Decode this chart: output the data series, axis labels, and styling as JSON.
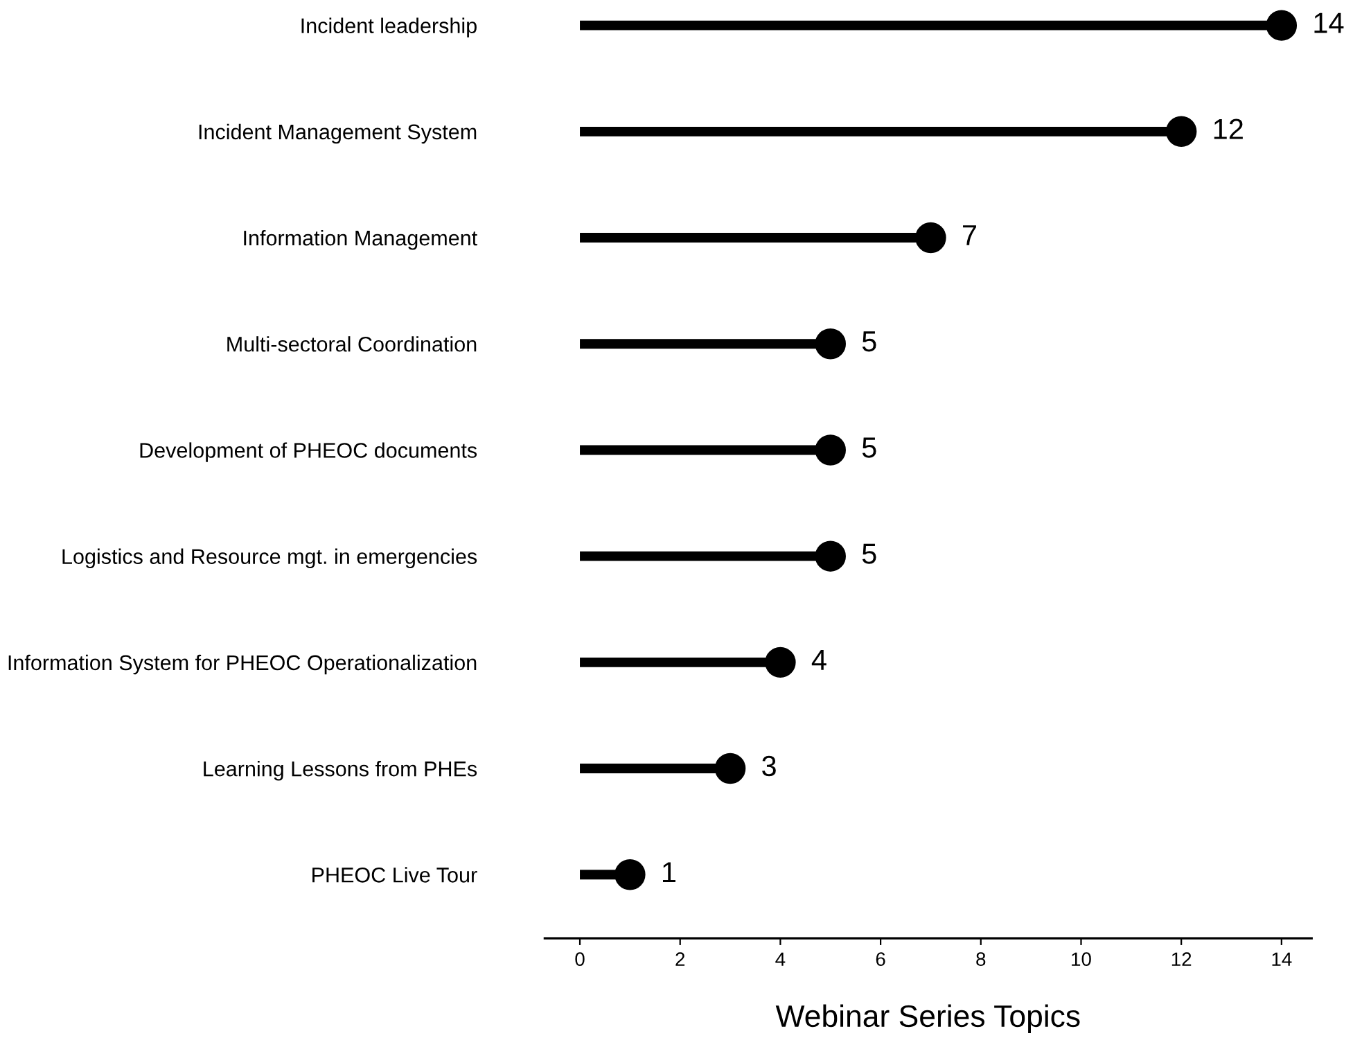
{
  "chart_data": {
    "type": "lollipop",
    "orientation": "horizontal",
    "xlabel": "Webinar Series Topics",
    "categories": [
      "Incident leadership",
      "Incident Management System",
      "Information Management",
      "Multi-sectoral Coordination",
      "Development of PHEOC documents",
      "Logistics and Resource mgt. in emergencies",
      "Information System for PHEOC Operationalization",
      "Learning Lessons from PHEs",
      "PHEOC Live Tour"
    ],
    "values": [
      14,
      12,
      7,
      5,
      5,
      5,
      4,
      3,
      1
    ],
    "color": "#000000",
    "marker": "circle",
    "data_labels": true,
    "grid": false,
    "legend": false,
    "xlim": [
      -0.7,
      14.6
    ],
    "xticks": [
      0,
      2,
      4,
      6,
      8,
      10,
      12,
      14
    ]
  }
}
